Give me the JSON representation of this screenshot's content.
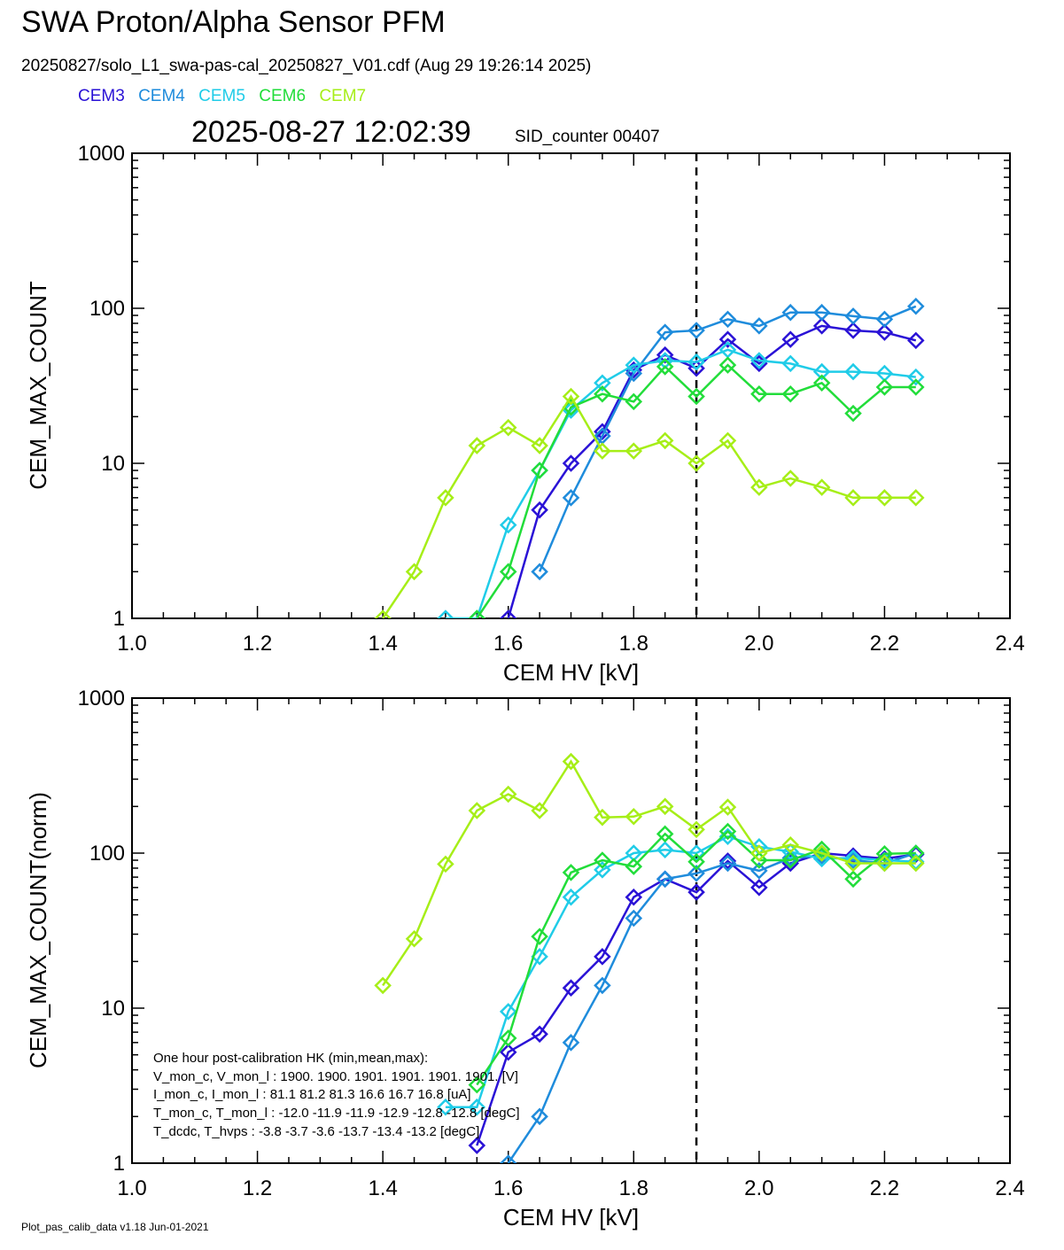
{
  "header": {
    "title": "SWA Proton/Alpha Sensor PFM",
    "subtitle": "20250827/solo_L1_swa-pas-cal_20250827_V01.cdf  (Aug 29 19:26:14 2025)",
    "timestamp": "2025-08-27 12:02:39",
    "sid_counter": "SID_counter 00407"
  },
  "legend": [
    {
      "name": "CEM3",
      "color": "#2a12d6"
    },
    {
      "name": "CEM4",
      "color": "#1f8cdc"
    },
    {
      "name": "CEM5",
      "color": "#20cce8"
    },
    {
      "name": "CEM6",
      "color": "#22dd3a"
    },
    {
      "name": "CEM7",
      "color": "#a6ee18"
    }
  ],
  "footer": "Plot_pas_calib_data v1.18 Jun-01-2021",
  "hk_box": {
    "heading": "One hour post-calibration HK (min,mean,max):",
    "lines": [
      "V_mon_c, V_mon_l :   1900.  1900.  1901.    1901.  1901.  1901. [V]",
      "I_mon_c,  I_mon_l :     81.1   81.2   81.3      16.6   16.7   16.8  [uA]",
      "T_mon_c, T_mon_l :  -12.0  -11.9  -11.9    -12.9  -12.8  -12.8  [degC]",
      "T_dcdc,    T_hvps :      -3.8   -3.7   -3.6    -13.7  -13.4  -13.2  [degC]"
    ]
  },
  "chart_data": [
    {
      "type": "line",
      "xlabel": "CEM HV [kV]",
      "ylabel": "CEM_MAX_COUNT",
      "xlim": [
        1.0,
        2.4
      ],
      "ylim": [
        1,
        1000
      ],
      "y_scale": "log",
      "x_ticks": [
        "1.0",
        "1.2",
        "1.4",
        "1.6",
        "1.8",
        "2.0",
        "2.2",
        "2.4"
      ],
      "y_ticks": [
        "1",
        "10",
        "100",
        "1000"
      ],
      "vline_x": 1.9,
      "series": [
        {
          "name": "CEM3",
          "color": "#2a12d6",
          "points": [
            [
              1.6,
              1
            ],
            [
              1.65,
              5
            ],
            [
              1.7,
              10
            ],
            [
              1.75,
              16
            ],
            [
              1.8,
              40
            ],
            [
              1.85,
              50
            ],
            [
              1.9,
              41
            ],
            [
              1.95,
              63
            ],
            [
              2.0,
              44
            ],
            [
              2.05,
              63
            ],
            [
              2.1,
              77
            ],
            [
              2.15,
              72
            ],
            [
              2.2,
              70
            ],
            [
              2.25,
              62
            ]
          ]
        },
        {
          "name": "CEM4",
          "color": "#1f8cdc",
          "points": [
            [
              1.65,
              2
            ],
            [
              1.7,
              6
            ],
            [
              1.75,
              15
            ],
            [
              1.8,
              38
            ],
            [
              1.85,
              70
            ],
            [
              1.9,
              72
            ],
            [
              1.95,
              85
            ],
            [
              2.0,
              77
            ],
            [
              2.05,
              94
            ],
            [
              2.1,
              94
            ],
            [
              2.15,
              89
            ],
            [
              2.2,
              85
            ],
            [
              2.25,
              103
            ]
          ]
        },
        {
          "name": "CEM5",
          "color": "#20cce8",
          "points": [
            [
              1.5,
              1
            ],
            [
              1.55,
              1
            ],
            [
              1.6,
              4
            ],
            [
              1.65,
              9
            ],
            [
              1.7,
              22
            ],
            [
              1.75,
              33
            ],
            [
              1.8,
              43
            ],
            [
              1.85,
              46
            ],
            [
              1.9,
              45
            ],
            [
              1.95,
              54
            ],
            [
              2.0,
              46
            ],
            [
              2.05,
              44
            ],
            [
              2.1,
              39
            ],
            [
              2.15,
              39
            ],
            [
              2.2,
              38
            ],
            [
              2.25,
              36
            ]
          ]
        },
        {
          "name": "CEM6",
          "color": "#22dd3a",
          "points": [
            [
              1.55,
              1
            ],
            [
              1.6,
              2
            ],
            [
              1.65,
              9
            ],
            [
              1.7,
              23
            ],
            [
              1.75,
              28
            ],
            [
              1.8,
              25
            ],
            [
              1.85,
              42
            ],
            [
              1.9,
              27
            ],
            [
              1.95,
              43
            ],
            [
              2.0,
              28
            ],
            [
              2.05,
              28
            ],
            [
              2.1,
              33
            ],
            [
              2.15,
              21
            ],
            [
              2.2,
              31
            ],
            [
              2.25,
              31
            ]
          ]
        },
        {
          "name": "CEM7",
          "color": "#a6ee18",
          "points": [
            [
              1.4,
              1
            ],
            [
              1.45,
              2
            ],
            [
              1.5,
              6
            ],
            [
              1.55,
              13
            ],
            [
              1.6,
              17
            ],
            [
              1.65,
              13
            ],
            [
              1.7,
              27
            ],
            [
              1.75,
              12
            ],
            [
              1.8,
              12
            ],
            [
              1.85,
              14
            ],
            [
              1.9,
              10
            ],
            [
              1.95,
              14
            ],
            [
              2.0,
              7
            ],
            [
              2.05,
              8
            ],
            [
              2.1,
              7
            ],
            [
              2.15,
              6
            ],
            [
              2.2,
              6
            ],
            [
              2.25,
              6
            ]
          ]
        }
      ]
    },
    {
      "type": "line",
      "xlabel": "CEM HV [kV]",
      "ylabel": "CEM_MAX_COUNT(norm)",
      "xlim": [
        1.0,
        2.4
      ],
      "ylim": [
        1,
        1000
      ],
      "y_scale": "log",
      "x_ticks": [
        "1.0",
        "1.2",
        "1.4",
        "1.6",
        "1.8",
        "2.0",
        "2.2",
        "2.4"
      ],
      "y_ticks": [
        "1",
        "10",
        "100",
        "1000"
      ],
      "vline_x": 1.9,
      "series": [
        {
          "name": "CEM3",
          "color": "#2a12d6",
          "points": [
            [
              1.55,
              1.3
            ],
            [
              1.6,
              5.2
            ],
            [
              1.65,
              6.8
            ],
            [
              1.7,
              13.5
            ],
            [
              1.75,
              21.5
            ],
            [
              1.8,
              52
            ],
            [
              1.85,
              68
            ],
            [
              1.9,
              56
            ],
            [
              1.95,
              89
            ],
            [
              2.0,
              60
            ],
            [
              2.05,
              86
            ],
            [
              2.1,
              100
            ],
            [
              2.15,
              96
            ],
            [
              2.2,
              92
            ],
            [
              2.25,
              98
            ]
          ]
        },
        {
          "name": "CEM4",
          "color": "#1f8cdc",
          "points": [
            [
              1.6,
              1
            ],
            [
              1.65,
              2
            ],
            [
              1.7,
              6
            ],
            [
              1.75,
              14
            ],
            [
              1.8,
              38
            ],
            [
              1.85,
              68
            ],
            [
              1.9,
              74
            ],
            [
              1.95,
              86
            ],
            [
              2.0,
              77
            ],
            [
              2.05,
              93
            ],
            [
              2.1,
              96
            ],
            [
              2.15,
              90
            ],
            [
              2.2,
              86
            ],
            [
              2.25,
              100
            ]
          ]
        },
        {
          "name": "CEM5",
          "color": "#20cce8",
          "points": [
            [
              1.5,
              2.3
            ],
            [
              1.55,
              2.3
            ],
            [
              1.6,
              9.5
            ],
            [
              1.65,
              21.5
            ],
            [
              1.7,
              52
            ],
            [
              1.75,
              78
            ],
            [
              1.8,
              100
            ],
            [
              1.85,
              105
            ],
            [
              1.9,
              100
            ],
            [
              1.95,
              128
            ],
            [
              2.0,
              110
            ],
            [
              2.05,
              102
            ],
            [
              2.1,
              92
            ],
            [
              2.15,
              93
            ],
            [
              2.2,
              90
            ],
            [
              2.25,
              88
            ]
          ]
        },
        {
          "name": "CEM6",
          "color": "#22dd3a",
          "points": [
            [
              1.55,
              3.2
            ],
            [
              1.6,
              6.4
            ],
            [
              1.65,
              29
            ],
            [
              1.7,
              75
            ],
            [
              1.75,
              90
            ],
            [
              1.8,
              82
            ],
            [
              1.85,
              133
            ],
            [
              1.9,
              88
            ],
            [
              1.95,
              138
            ],
            [
              2.0,
              90
            ],
            [
              2.05,
              90
            ],
            [
              2.1,
              106
            ],
            [
              2.15,
              68
            ],
            [
              2.2,
              99
            ],
            [
              2.25,
              100
            ]
          ]
        },
        {
          "name": "CEM7",
          "color": "#a6ee18",
          "points": [
            [
              1.4,
              14
            ],
            [
              1.45,
              28
            ],
            [
              1.5,
              85
            ],
            [
              1.55,
              188
            ],
            [
              1.6,
              240
            ],
            [
              1.65,
              188
            ],
            [
              1.7,
              390
            ],
            [
              1.75,
              170
            ],
            [
              1.8,
              172
            ],
            [
              1.85,
              200
            ],
            [
              1.9,
              142
            ],
            [
              1.95,
              198
            ],
            [
              2.0,
              100
            ],
            [
              2.05,
              113
            ],
            [
              2.1,
              100
            ],
            [
              2.15,
              86
            ],
            [
              2.2,
              86
            ],
            [
              2.25,
              86
            ]
          ]
        }
      ]
    }
  ]
}
